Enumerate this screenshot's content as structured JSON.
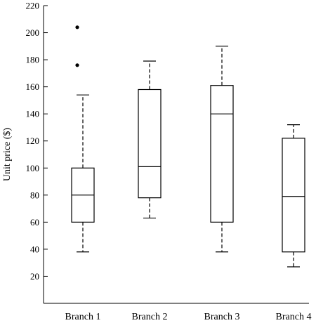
{
  "chart_data": {
    "type": "box",
    "ylabel": "Unit price ($)",
    "ylim": [
      0,
      220
    ],
    "yticks": [
      20,
      40,
      60,
      80,
      100,
      120,
      140,
      160,
      180,
      200,
      220
    ],
    "categories": [
      "Branch 1",
      "Branch 2",
      "Branch 3",
      "Branch 4"
    ],
    "boxes": [
      {
        "name": "Branch 1",
        "min": 38,
        "q1": 60,
        "median": 80,
        "q3": 100,
        "max": 154,
        "outliers": [
          176,
          204
        ]
      },
      {
        "name": "Branch 2",
        "min": 63,
        "q1": 78,
        "median": 101,
        "q3": 158,
        "max": 179,
        "outliers": []
      },
      {
        "name": "Branch 3",
        "min": 38,
        "q1": 60,
        "median": 140,
        "q3": 161,
        "max": 190,
        "outliers": []
      },
      {
        "name": "Branch 4",
        "min": 27,
        "q1": 38,
        "median": 79,
        "q3": 122,
        "max": 132,
        "outliers": []
      }
    ],
    "grid": false,
    "legend": "none"
  }
}
